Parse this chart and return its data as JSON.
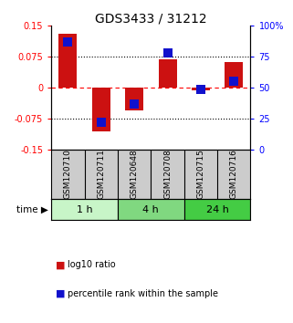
{
  "title": "GDS3433 / 31212",
  "samples": [
    "GSM120710",
    "GSM120711",
    "GSM120648",
    "GSM120708",
    "GSM120715",
    "GSM120716"
  ],
  "log10_ratio": [
    0.13,
    -0.105,
    -0.055,
    0.068,
    -0.005,
    0.062
  ],
  "percentile_rank": [
    87,
    22,
    37,
    78,
    49,
    55
  ],
  "ylim_left": [
    -0.15,
    0.15
  ],
  "ylim_right": [
    0,
    100
  ],
  "yticks_left": [
    -0.15,
    -0.075,
    0,
    0.075,
    0.15
  ],
  "yticks_right": [
    0,
    25,
    50,
    75,
    100
  ],
  "ytick_labels_left": [
    "-0.15",
    "-0.075",
    "0",
    "0.075",
    "0.15"
  ],
  "ytick_labels_right": [
    "0",
    "25",
    "50",
    "75",
    "100%"
  ],
  "time_groups": [
    {
      "label": "1 h",
      "start": 0,
      "end": 2,
      "color": "#c8f5c8"
    },
    {
      "label": "4 h",
      "start": 2,
      "end": 4,
      "color": "#80d880"
    },
    {
      "label": "24 h",
      "start": 4,
      "end": 6,
      "color": "#44cc44"
    }
  ],
  "bar_color": "#cc1111",
  "dot_color": "#1111cc",
  "bar_width": 0.55,
  "dot_size": 45,
  "legend_items": [
    {
      "label": "log10 ratio",
      "color": "#cc1111"
    },
    {
      "label": "percentile rank within the sample",
      "color": "#1111cc"
    }
  ],
  "label_area_color": "#cccccc",
  "time_label": "time",
  "fig_bg": "#ffffff"
}
